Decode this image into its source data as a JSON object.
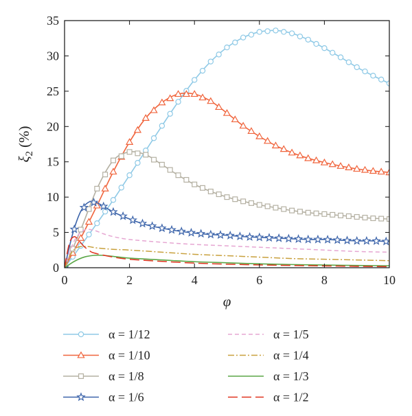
{
  "chart_data": {
    "type": "line",
    "xlabel": "φ",
    "ylabel_symbol": "ξ",
    "ylabel_subscript": "2",
    "ylabel_unit": "(%)",
    "xlim": [
      0,
      10
    ],
    "ylim": [
      0,
      35
    ],
    "x_ticks": [
      0,
      2,
      4,
      6,
      8,
      10
    ],
    "y_ticks": [
      0,
      5,
      10,
      15,
      20,
      25,
      30,
      35
    ],
    "grid": false,
    "legend_position": "bottom",
    "series": [
      {
        "name": "α = 1/12",
        "color": "#8ec9e6",
        "marker": "circle",
        "dash": "solid",
        "x": [
          0,
          0.5,
          1,
          1.5,
          2,
          2.5,
          3,
          3.5,
          4,
          4.5,
          5,
          5.5,
          6,
          6.5,
          7,
          7.5,
          8,
          8.5,
          9,
          9.5,
          10
        ],
        "y": [
          0,
          3.1,
          6.3,
          9.6,
          13.1,
          16.6,
          20.1,
          23.5,
          26.6,
          29.2,
          31.2,
          32.6,
          33.4,
          33.6,
          33.2,
          32.3,
          31.1,
          29.8,
          28.4,
          27.2,
          26.1
        ]
      },
      {
        "name": "α = 1/10",
        "color": "#f0643c",
        "marker": "triangle",
        "dash": "solid",
        "x": [
          0,
          0.5,
          1,
          1.5,
          2,
          2.5,
          3,
          3.5,
          4,
          4.5,
          5,
          5.5,
          6,
          6.5,
          7,
          7.5,
          8,
          8.5,
          9,
          9.5,
          10
        ],
        "y": [
          0,
          4.2,
          8.8,
          13.6,
          17.8,
          21.2,
          23.4,
          24.6,
          24.6,
          23.6,
          21.9,
          20.1,
          18.6,
          17.3,
          16.3,
          15.5,
          14.9,
          14.4,
          14.0,
          13.7,
          13.5
        ]
      },
      {
        "name": "α = 1/8",
        "color": "#b4b0a2",
        "marker": "square",
        "dash": "solid",
        "x": [
          0,
          0.5,
          1,
          1.5,
          2,
          2.5,
          3,
          3.5,
          4,
          4.5,
          5,
          5.5,
          6,
          6.5,
          7,
          7.5,
          8,
          8.5,
          9,
          9.5,
          10
        ],
        "y": [
          0,
          5.4,
          11.2,
          15.2,
          16.4,
          16.0,
          14.6,
          13.1,
          11.8,
          10.8,
          10.0,
          9.4,
          8.9,
          8.5,
          8.1,
          7.8,
          7.6,
          7.4,
          7.2,
          7.0,
          6.9
        ]
      },
      {
        "name": "α = 1/6",
        "color": "#3c64aa",
        "marker": "star",
        "dash": "solid",
        "x": [
          0,
          0.25,
          0.5,
          0.75,
          1,
          1.5,
          2,
          2.5,
          3,
          3.5,
          4,
          4.5,
          5,
          5.5,
          6,
          6.5,
          7,
          7.5,
          8,
          8.5,
          9,
          9.5,
          10
        ],
        "y": [
          0,
          4.8,
          8.0,
          9.3,
          9.2,
          7.9,
          6.9,
          6.1,
          5.6,
          5.2,
          4.9,
          4.7,
          4.6,
          4.4,
          4.3,
          4.2,
          4.1,
          4.0,
          4.0,
          3.9,
          3.8,
          3.8,
          3.7
        ]
      },
      {
        "name": "α = 1/5",
        "color": "#e6a6d2",
        "marker": "none",
        "dash": "6,4",
        "x": [
          0,
          0.3,
          0.6,
          0.9,
          1.2,
          1.5,
          2,
          3,
          4,
          5,
          6,
          7,
          8,
          9,
          10
        ],
        "y": [
          0,
          3.8,
          5.3,
          5.3,
          4.8,
          4.4,
          4.0,
          3.6,
          3.3,
          3.1,
          2.9,
          2.7,
          2.5,
          2.3,
          2.2
        ]
      },
      {
        "name": "α = 1/4",
        "color": "#c8a03c",
        "marker": "none",
        "dash": "9,3,2,3",
        "x": [
          0,
          0.2,
          0.4,
          0.7,
          1,
          1.5,
          2,
          3,
          4,
          5,
          6,
          7,
          8,
          9,
          10
        ],
        "y": [
          0,
          2.0,
          2.9,
          3.0,
          2.8,
          2.6,
          2.5,
          2.2,
          1.9,
          1.7,
          1.5,
          1.3,
          1.2,
          1.1,
          1.0
        ]
      },
      {
        "name": "α = 1/3",
        "color": "#5aa646",
        "marker": "none",
        "dash": "solid",
        "x": [
          0,
          0.3,
          0.6,
          0.9,
          1.2,
          1.6,
          2,
          3,
          4,
          5,
          6,
          7,
          8,
          9,
          10
        ],
        "y": [
          0,
          0.9,
          1.5,
          1.75,
          1.75,
          1.55,
          1.35,
          1.1,
          0.85,
          0.7,
          0.55,
          0.45,
          0.38,
          0.32,
          0.28
        ]
      },
      {
        "name": "α = 1/2",
        "color": "#e0321e",
        "marker": "none",
        "dash": "14,6",
        "x": [
          0,
          0.15,
          0.3,
          0.45,
          0.6,
          0.75,
          0.9,
          1.5,
          2,
          3,
          4,
          5,
          6,
          7,
          8,
          9,
          10
        ],
        "y": [
          0,
          3.5,
          4.4,
          3.8,
          3.0,
          2.5,
          2.1,
          1.5,
          1.2,
          0.9,
          0.65,
          0.5,
          0.4,
          0.32,
          0.26,
          0.2,
          0.15
        ]
      }
    ]
  }
}
